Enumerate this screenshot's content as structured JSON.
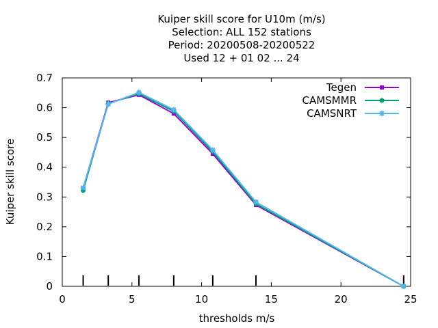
{
  "chart_data": {
    "type": "line",
    "title_lines": [
      "Kuiper skill score  for U10m (m/s)",
      "Selection: ALL    152 stations",
      "Period: 20200508-20200522",
      "Used  12 + 01 02 ... 24"
    ],
    "xlabel": "thresholds m/s",
    "ylabel": "Kuiper skill score",
    "xlim": [
      0,
      25
    ],
    "ylim": [
      0,
      0.7
    ],
    "xticks": [
      0,
      5,
      10,
      15,
      20,
      25
    ],
    "yticks": [
      0,
      0.1,
      0.2,
      0.3,
      0.4,
      0.5,
      0.6,
      0.7
    ],
    "ytick_labels": [
      "0",
      "0.1",
      "0.2",
      "0.3",
      "0.4",
      "0.5",
      "0.6",
      "0.7"
    ],
    "x": [
      1.5,
      3.3,
      5.5,
      8.0,
      10.8,
      13.9,
      24.5
    ],
    "threshold_marks": [
      1.5,
      3.3,
      5.5,
      8.0,
      10.8,
      13.9,
      24.5
    ],
    "legend_position": "top-right",
    "grid": false,
    "series": [
      {
        "name": "Tegen",
        "color": "#9400d3",
        "marker": "square",
        "values": [
          0.33,
          0.617,
          0.643,
          0.58,
          0.445,
          0.273,
          0.0
        ]
      },
      {
        "name": "CAMSMMR",
        "color": "#009e73",
        "marker": "circle",
        "values": [
          0.322,
          0.614,
          0.647,
          0.588,
          0.452,
          0.277,
          0.0
        ]
      },
      {
        "name": "CAMSNRT",
        "color": "#56b4e9",
        "marker": "star",
        "values": [
          0.331,
          0.612,
          0.651,
          0.593,
          0.458,
          0.283,
          0.0
        ]
      }
    ]
  }
}
